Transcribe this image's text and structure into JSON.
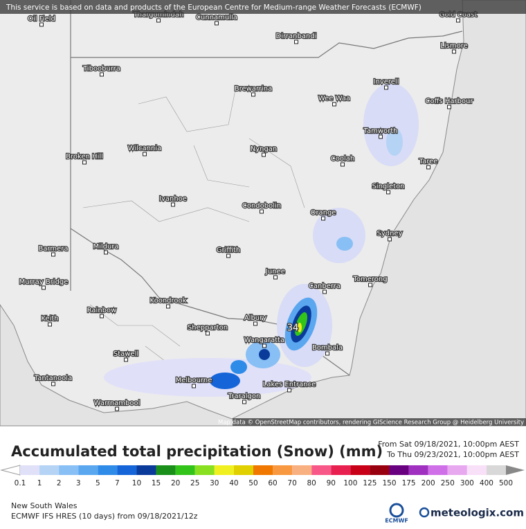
{
  "header": {
    "attribution": "This service is based on data and products of the European Centre for Medium-range Weather Forecasts (ECMWF)"
  },
  "map": {
    "places": [
      "Oil Field",
      "Thargomindah",
      "Cunnamulla",
      "Gold Coast",
      "Dirranbandi",
      "Lismore",
      "Tibooburra",
      "Inverell",
      "Brewarrina",
      "Wee Waa",
      "Coffs Harbour",
      "Tamworth",
      "Wilcannia",
      "Nyngan",
      "Broken Hill",
      "Coolah",
      "Taree",
      "Singleton",
      "Ivanhoe",
      "Condobolin",
      "Orange",
      "Sydney",
      "Barmera",
      "Mildura",
      "Griffith",
      "Junee",
      "Murray Bridge",
      "Tomerong",
      "Canberra",
      "Koondrook",
      "Rainbow",
      "Keith",
      "Albury",
      "Shepparton",
      "Wangaratta",
      "Bombala",
      "Stawell",
      "Tantanoola",
      "Melbourne",
      "Lakes Entrance",
      "Traralgon",
      "Warrnambool"
    ],
    "max_label": "34",
    "attribution": "Map data © OpenStreetMap contributors, rendering GIScience Research Group @ Heidelberg University"
  },
  "legend": {
    "title": "Accumulated total precipitation (Snow) (mm)",
    "from": "From Sat 09/18/2021, 10:00pm AEST",
    "to": "To Thu 09/23/2021, 10:00pm AEST",
    "ticks": [
      "0.1",
      "1",
      "2",
      "3",
      "5",
      "7",
      "10",
      "15",
      "20",
      "25",
      "30",
      "40",
      "50",
      "60",
      "70",
      "80",
      "90",
      "100",
      "125",
      "150",
      "175",
      "200",
      "250",
      "300",
      "400",
      "500"
    ],
    "colors": [
      "#e0e0f8",
      "#b5d3f5",
      "#88bff5",
      "#5aa7f0",
      "#2f8be8",
      "#1565d8",
      "#0a3a9a",
      "#1a8f1a",
      "#33c41a",
      "#88e020",
      "#f0f020",
      "#e0d000",
      "#f07800",
      "#f89840",
      "#f8b080",
      "#f85888",
      "#e82050",
      "#c80018",
      "#980010",
      "#680080",
      "#a030c0",
      "#d070e8",
      "#e8a8f0",
      "#f8e0f8",
      "#d8d8d8"
    ]
  },
  "footer": {
    "region": "New South Wales",
    "model": "ECMWF IFS HRES (10 days) from 09/18/2021/12z",
    "ecmwf": "ECMWF",
    "brand": "meteologix.com"
  }
}
